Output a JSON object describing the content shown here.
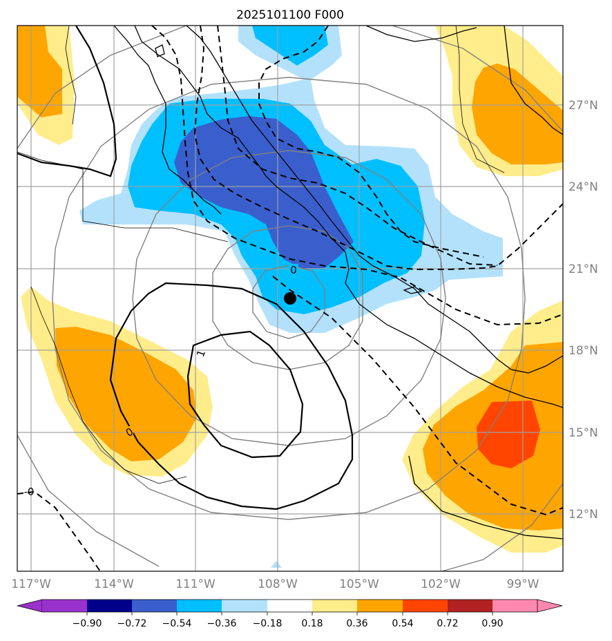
{
  "title": "2025101100 F000",
  "colors": {
    "purple": "#9932cc",
    "navy": "#00008b",
    "royal": "#3a5fcd",
    "deepsky": "#00bfff",
    "lightblue": "#b3e1fb",
    "white": "#ffffff",
    "yellow": "#ffec8b",
    "orange": "#ffa500",
    "orangered": "#ff4500",
    "firebrick": "#b22222",
    "pink": "#ff88b0",
    "grid": "#a0a0a0",
    "rings": "#808080",
    "coast": "#000000"
  },
  "axes": {
    "lon_labels": [
      "117°W",
      "114°W",
      "111°W",
      "108°W",
      "105°W",
      "102°W",
      "99°W"
    ],
    "lat_labels": [
      "27°N",
      "24°N",
      "21°N",
      "18°N",
      "15°N",
      "12°N"
    ]
  },
  "colorbar": {
    "ticks": [
      "−0.90",
      "−0.72",
      "−0.54",
      "−0.36",
      "−0.18",
      "0.18",
      "0.36",
      "0.54",
      "0.72",
      "0.90"
    ]
  },
  "contour_labels": [
    "0",
    "1",
    "0",
    "-0"
  ],
  "marker": {
    "name": "storm-center",
    "lon": -107.6,
    "lat": 19.9
  }
}
